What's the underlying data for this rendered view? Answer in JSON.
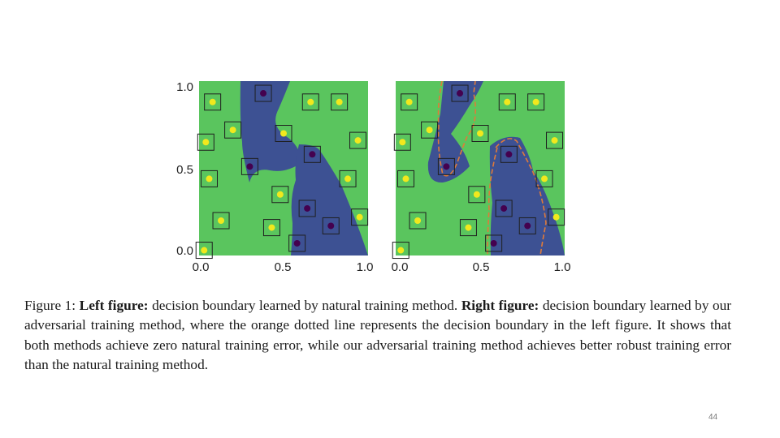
{
  "chart_data": [
    {
      "type": "scatter",
      "panel": "left",
      "xlim": [
        0,
        1
      ],
      "ylim": [
        0,
        1
      ],
      "x_ticks": [
        "0.0",
        "0.5",
        "1.0"
      ],
      "y_ticks": [
        "0.0",
        "0.5",
        "1.0"
      ],
      "colors": {
        "class_a_region": "#5ac55e",
        "class_b_region": "#3d5193",
        "class_a_point": "#f1e81d",
        "class_b_point": "#44014f",
        "box": "#1f1f1f"
      },
      "class_a_points": [
        [
          0.08,
          0.88
        ],
        [
          0.2,
          0.72
        ],
        [
          0.04,
          0.65
        ],
        [
          0.66,
          0.88
        ],
        [
          0.83,
          0.88
        ],
        [
          0.5,
          0.7
        ],
        [
          0.94,
          0.66
        ],
        [
          0.06,
          0.44
        ],
        [
          0.48,
          0.35
        ],
        [
          0.88,
          0.44
        ],
        [
          0.13,
          0.2
        ],
        [
          0.43,
          0.16
        ],
        [
          0.95,
          0.22
        ],
        [
          0.03,
          0.03
        ]
      ],
      "class_b_points": [
        [
          0.38,
          0.93
        ],
        [
          0.3,
          0.51
        ],
        [
          0.67,
          0.58
        ],
        [
          0.64,
          0.27
        ],
        [
          0.78,
          0.17
        ],
        [
          0.58,
          0.07
        ]
      ]
    },
    {
      "type": "scatter",
      "panel": "right",
      "xlim": [
        0,
        1
      ],
      "ylim": [
        0,
        1
      ],
      "x_ticks": [
        "0.0",
        "0.5",
        "1.0"
      ],
      "colors": {
        "class_a_region": "#5ac55e",
        "class_b_region": "#3d5193",
        "class_a_point": "#f1e81d",
        "class_b_point": "#44014f",
        "box": "#1f1f1f",
        "reference_boundary": "#e07a3a"
      },
      "class_a_points": [
        [
          0.08,
          0.88
        ],
        [
          0.2,
          0.72
        ],
        [
          0.04,
          0.65
        ],
        [
          0.66,
          0.88
        ],
        [
          0.83,
          0.88
        ],
        [
          0.5,
          0.7
        ],
        [
          0.94,
          0.66
        ],
        [
          0.06,
          0.44
        ],
        [
          0.48,
          0.35
        ],
        [
          0.88,
          0.44
        ],
        [
          0.13,
          0.2
        ],
        [
          0.43,
          0.16
        ],
        [
          0.95,
          0.22
        ],
        [
          0.03,
          0.03
        ]
      ],
      "class_b_points": [
        [
          0.38,
          0.93
        ],
        [
          0.3,
          0.51
        ],
        [
          0.67,
          0.58
        ],
        [
          0.64,
          0.27
        ],
        [
          0.78,
          0.17
        ],
        [
          0.58,
          0.07
        ]
      ]
    }
  ],
  "caption": {
    "label": "Figure 1:",
    "left_heading": "Left figure:",
    "left_text": "decision boundary learned by natural training method.",
    "right_heading": "Right figure:",
    "right_text": "decision boundary learned by our adversarial training method, where the orange dotted line represents the decision boundary in the left figure. It shows that both methods achieve zero natural training error, while our adversarial training method achieves better robust training error than the natural training method."
  },
  "page_number": "44"
}
